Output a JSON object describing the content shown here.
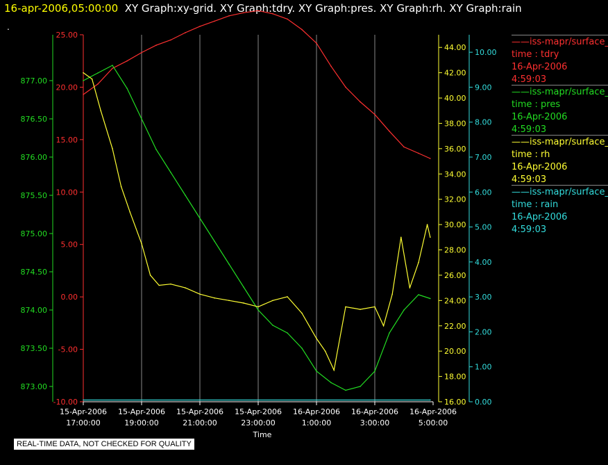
{
  "header": {
    "datetime": "16-apr-2006,05:00:00",
    "graphs": "XY Graph:xy-grid.  XY Graph:tdry.  XY Graph:pres.  XY Graph:rh.  XY Graph:rain",
    "dot": "."
  },
  "notice": "REAL-TIME DATA, NOT CHECKED FOR QUALITY",
  "legend": [
    {
      "line": "——iss-mapr/surface_m",
      "var": "time : tdry",
      "date": "16-Apr-2006",
      "time": "4:59:03",
      "color": "#ff3030"
    },
    {
      "line": "——iss-mapr/surface_m",
      "var": "time : pres",
      "date": "16-Apr-2006",
      "time": "4:59:03",
      "color": "#22dd22"
    },
    {
      "line": "——iss-mapr/surface_m",
      "var": "time : rh",
      "date": "16-Apr-2006",
      "time": "4:59:03",
      "color": "#ffff33"
    },
    {
      "line": "——iss-mapr/surface_m",
      "var": "time : rain",
      "date": "16-Apr-2006",
      "time": "4:59:03",
      "color": "#33dddd"
    }
  ],
  "chart_data": {
    "type": "line",
    "xlabel": "Time",
    "x_ticks": [
      [
        "15-Apr-2006",
        "17:00:00"
      ],
      [
        "15-Apr-2006",
        "19:00:00"
      ],
      [
        "15-Apr-2006",
        "21:00:00"
      ],
      [
        "15-Apr-2006",
        "23:00:00"
      ],
      [
        "16-Apr-2006",
        "1:00:00"
      ],
      [
        "16-Apr-2006",
        "3:00:00"
      ],
      [
        "16-Apr-2006",
        "5:00:00"
      ]
    ],
    "x_hours": [
      0,
      2,
      4,
      6,
      8,
      10,
      12
    ],
    "grid": true,
    "axes": {
      "tdry": {
        "color": "#ff3030",
        "ylim": [
          -10,
          25
        ],
        "ticks": [
          "25.00",
          "20.00",
          "15.00",
          "10.00",
          "5.00",
          "0.00",
          "-5.00",
          "-10.00"
        ],
        "tick_values": [
          25,
          20,
          15,
          10,
          5,
          0,
          -5,
          -10
        ]
      },
      "pres": {
        "color": "#22dd22",
        "ylim": [
          872.8,
          877.6
        ],
        "ticks": [
          "877.00",
          "876.50",
          "876.00",
          "875.50",
          "875.00",
          "874.50",
          "874.00",
          "873.50",
          "873.00"
        ],
        "tick_values": [
          877,
          876.5,
          876,
          875.5,
          875,
          874.5,
          874,
          873.5,
          873
        ]
      },
      "rh": {
        "color": "#ffff33",
        "ylim": [
          16,
          45
        ],
        "ticks": [
          "44.00",
          "42.00",
          "40.00",
          "38.00",
          "36.00",
          "34.00",
          "32.00",
          "30.00",
          "28.00",
          "26.00",
          "24.00",
          "22.00",
          "20.00",
          "18.00",
          "16.00"
        ],
        "tick_values": [
          44,
          42,
          40,
          38,
          36,
          34,
          32,
          30,
          28,
          26,
          24,
          22,
          20,
          18,
          16
        ]
      },
      "rain": {
        "color": "#33dddd",
        "ylim": [
          0,
          10.5
        ],
        "ticks": [
          "10.00",
          "9.00",
          "8.00",
          "7.00",
          "6.00",
          "5.00",
          "4.00",
          "3.00",
          "2.00",
          "1.00",
          "0.00"
        ],
        "tick_values": [
          10,
          9,
          8,
          7,
          6,
          5,
          4,
          3,
          2,
          1,
          0
        ]
      }
    },
    "series": [
      {
        "name": "tdry",
        "axis": "tdry",
        "x": [
          0,
          0.5,
          1,
          1.5,
          2,
          2.5,
          3,
          3.5,
          4,
          4.5,
          5,
          5.5,
          6,
          6.5,
          7,
          7.5,
          8,
          8.5,
          9,
          9.5,
          10,
          10.5,
          11,
          11.5,
          11.9
        ],
        "y": [
          19.3,
          20.3,
          21.8,
          22.5,
          23.3,
          24.0,
          24.5,
          25.2,
          25.8,
          26.3,
          26.8,
          27.1,
          27.3,
          27.0,
          26.5,
          25.5,
          24.2,
          22.0,
          20.0,
          18.6,
          17.4,
          15.8,
          14.3,
          13.7,
          13.2
        ]
      },
      {
        "name": "pres",
        "axis": "pres",
        "x": [
          0,
          0.5,
          1,
          1.5,
          2,
          2.5,
          3,
          3.5,
          4,
          4.5,
          5,
          5.5,
          6,
          6.5,
          7,
          7.5,
          8,
          8.5,
          9,
          9.5,
          10,
          10.5,
          11,
          11.5,
          11.9
        ],
        "y": [
          877.0,
          877.1,
          877.2,
          876.9,
          876.5,
          876.1,
          875.8,
          875.5,
          875.2,
          874.9,
          874.6,
          874.3,
          874.0,
          873.8,
          873.7,
          873.5,
          873.2,
          873.05,
          872.95,
          873.0,
          873.2,
          873.7,
          874.0,
          874.2,
          874.15
        ]
      },
      {
        "name": "rh",
        "axis": "rh",
        "x": [
          0,
          0.3,
          0.6,
          1,
          1.3,
          1.6,
          2,
          2.3,
          2.6,
          3,
          3.5,
          4,
          4.5,
          5,
          5.5,
          6,
          6.5,
          7,
          7.5,
          8,
          8.3,
          8.6,
          9,
          9.5,
          10,
          10.3,
          10.6,
          10.9,
          11.2,
          11.5,
          11.8,
          11.9
        ],
        "y": [
          42,
          41.5,
          39,
          36,
          33,
          31,
          28.5,
          26,
          25.2,
          25.3,
          25,
          24.5,
          24.2,
          24,
          23.8,
          23.5,
          24,
          24.3,
          23,
          21,
          20,
          18.5,
          23.5,
          23.3,
          23.5,
          22,
          24.5,
          29,
          25,
          27,
          30,
          29
        ]
      },
      {
        "name": "rain",
        "axis": "rain",
        "x": [
          0,
          11.9
        ],
        "y": [
          0.05,
          0.05
        ]
      }
    ]
  }
}
